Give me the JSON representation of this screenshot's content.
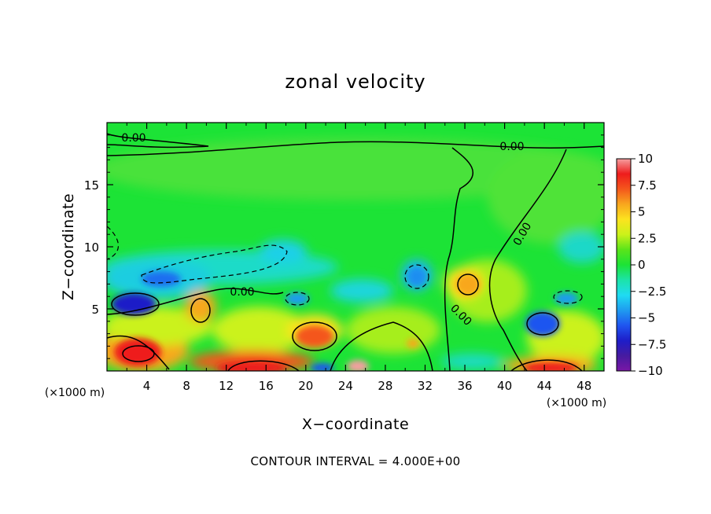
{
  "chart_data": {
    "type": "heatmap",
    "title": "zonal velocity",
    "xlabel": "X−coordinate",
    "ylabel": "Z−coordinate",
    "x_unit": "(×1000 m)",
    "z_unit": "(×1000 m)",
    "xlim": [
      0,
      50
    ],
    "ylim": [
      0,
      20
    ],
    "x_ticks": [
      "4",
      "8",
      "12",
      "16",
      "20",
      "24",
      "28",
      "32",
      "36",
      "40",
      "44",
      "48"
    ],
    "y_ticks": [
      "5",
      "10",
      "15"
    ],
    "colorbar": {
      "ticks": [
        "10",
        "7.5",
        "5",
        "2.5",
        "0",
        "−2.5",
        "−5",
        "−7.5",
        "−10"
      ],
      "range": [
        -10,
        10
      ],
      "colors": [
        "#f59fa0",
        "#ee1c1c",
        "#f4571c",
        "#f8a71e",
        "#fce31f",
        "#cbf21a",
        "#5ae41a",
        "#1ce336",
        "#1ce3a9",
        "#1fdbf2",
        "#1f9bf0",
        "#1f55f0",
        "#1e1dc8",
        "#461ba0",
        "#7a17a6"
      ]
    },
    "contour_interval": "CONTOUR INTERVAL = 4.000E+00",
    "contour_labels": [
      "0.00",
      "0.00",
      "0.00",
      "0.00",
      "0.00"
    ],
    "features": [
      {
        "x": 4,
        "z": 5.2,
        "value": -8
      },
      {
        "x": 4,
        "z": 1.5,
        "value": 7
      },
      {
        "x": 16,
        "z": 0.4,
        "value": 9
      },
      {
        "x": 21.5,
        "z": 3,
        "value": 6
      },
      {
        "x": 25.5,
        "z": 0.5,
        "value": 9
      },
      {
        "x": 36,
        "z": 7,
        "value": 5
      },
      {
        "x": 44,
        "z": 3.5,
        "value": -6
      },
      {
        "x": 44,
        "z": 0.4,
        "value": 10
      },
      {
        "x": 6,
        "z": 7.5,
        "value": -5
      }
    ]
  }
}
